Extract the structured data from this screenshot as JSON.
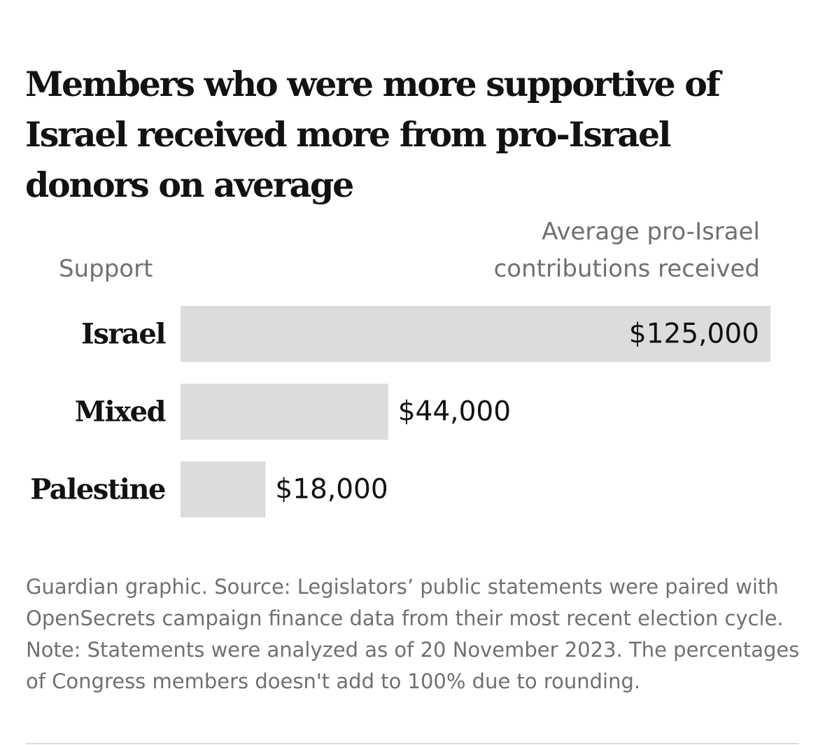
{
  "page": {
    "title": "Members who were more supportive of Israel received more from pro-Israel donors on average",
    "source": "Guardian graphic. Source: Legislators’ public statements were paired with OpenSecrets campaign finance data from their most recent election cycle. Note: Statements were analyzed as of 20 November 2023. The percentages of Congress members doesn't add to 100% due to rounding."
  },
  "chart_data": {
    "type": "bar",
    "orientation": "horizontal",
    "title": "Members who were more supportive of Israel received more from pro-Israel donors on average",
    "category_label": "Support",
    "value_label_lines": [
      "Average pro-Israel",
      "contributions received"
    ],
    "categories": [
      "Israel",
      "Mixed",
      "Palestine"
    ],
    "values": [
      125000,
      44000,
      18000
    ],
    "value_labels": [
      "$125,000",
      "$44,000",
      "$18,000"
    ],
    "xlim": [
      0,
      125000
    ],
    "grid": false,
    "bar_color": "#dcdcdc"
  }
}
